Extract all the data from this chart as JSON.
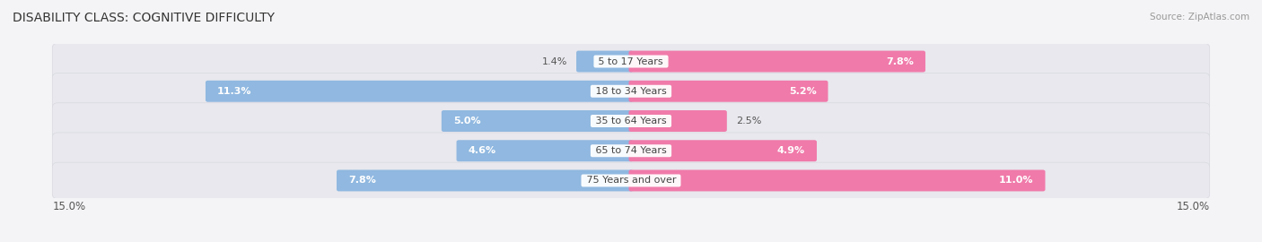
{
  "title": "DISABILITY CLASS: COGNITIVE DIFFICULTY",
  "source": "Source: ZipAtlas.com",
  "categories": [
    "5 to 17 Years",
    "18 to 34 Years",
    "35 to 64 Years",
    "65 to 74 Years",
    "75 Years and over"
  ],
  "male_values": [
    1.4,
    11.3,
    5.0,
    4.6,
    7.8
  ],
  "female_values": [
    7.8,
    5.2,
    2.5,
    4.9,
    11.0
  ],
  "max_val": 15.0,
  "male_color": "#90b8e0",
  "female_color": "#f07aaa",
  "bg_color": "#f4f4f6",
  "row_bg_color": "#e8e8ee",
  "title_fontsize": 10,
  "label_fontsize": 8,
  "tick_fontsize": 8.5,
  "legend_fontsize": 9,
  "val_label_color_inside": "white",
  "val_label_color_outside": "#555555"
}
